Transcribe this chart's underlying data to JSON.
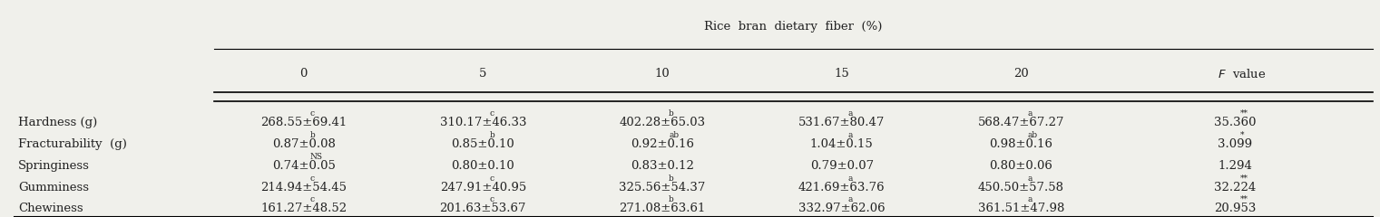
{
  "title": "Rice  bran  dietary  fiber  (%)",
  "col_headers": [
    "0",
    "5",
    "10",
    "15",
    "20",
    "F  value"
  ],
  "rows": [
    {
      "label": "Hardness (g)",
      "values": [
        "268.55±69.41",
        "310.17±46.33",
        "402.28±65.03",
        "531.67±80.47",
        "568.47±67.27",
        "35.360"
      ],
      "sups": [
        "c",
        "c",
        "b",
        "a",
        "a",
        "**"
      ]
    },
    {
      "label": "Fracturability  (g)",
      "values": [
        "0.87±0.08",
        "0.85±0.10",
        "0.92±0.16",
        "1.04±0.15",
        "0.98±0.16",
        "3.099"
      ],
      "sups": [
        "b",
        "b",
        "ab",
        "a",
        "ab",
        "*"
      ]
    },
    {
      "label": "Springiness",
      "values": [
        "0.74±0.05",
        "0.80±0.10",
        "0.83±0.12",
        "0.79±0.07",
        "0.80±0.06",
        "1.294"
      ],
      "sups": [
        "NS",
        "",
        "",
        "",
        "",
        ""
      ]
    },
    {
      "label": "Gumminess",
      "values": [
        "214.94±54.45",
        "247.91±40.95",
        "325.56±54.37",
        "421.69±63.76",
        "450.50±57.58",
        "32.224"
      ],
      "sups": [
        "c",
        "c",
        "b",
        "a",
        "a",
        "**"
      ]
    },
    {
      "label": "Chewiness",
      "values": [
        "161.27±48.52",
        "201.63±53.67",
        "271.08±63.61",
        "332.97±62.06",
        "361.51±47.98",
        "20.953"
      ],
      "sups": [
        "c",
        "c",
        "b",
        "a",
        "a",
        "**"
      ]
    }
  ],
  "bg_color": "#f0f0eb",
  "text_color": "#222222",
  "fontsize": 9.5,
  "sup_fontsize": 6.5
}
